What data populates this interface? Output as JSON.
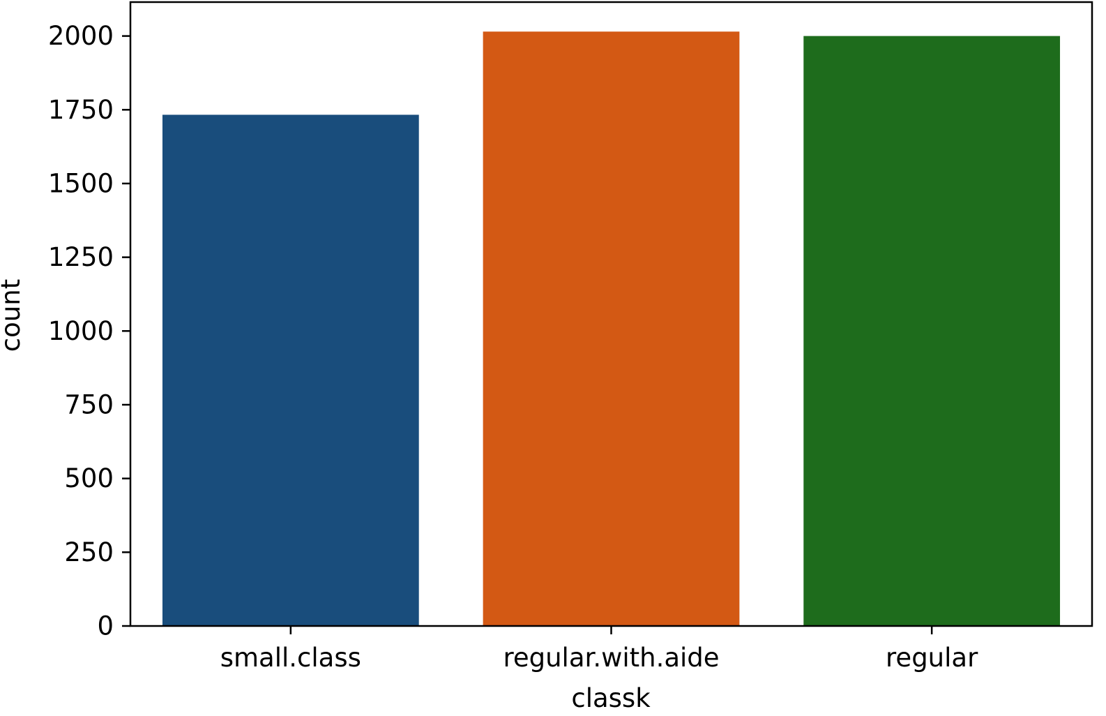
{
  "chart_data": {
    "type": "bar",
    "title": "",
    "xlabel": "classk",
    "ylabel": "count",
    "categories": [
      "small.class",
      "regular.with.aide",
      "regular"
    ],
    "values": [
      1733,
      2015,
      2000
    ],
    "colors": [
      "#194d7c",
      "#d35914",
      "#1e6c1c"
    ],
    "ylim": [
      0,
      2115
    ],
    "yticks": [
      0,
      250,
      500,
      750,
      1000,
      1250,
      1500,
      1750,
      2000
    ],
    "grid": false,
    "legend": "none"
  }
}
